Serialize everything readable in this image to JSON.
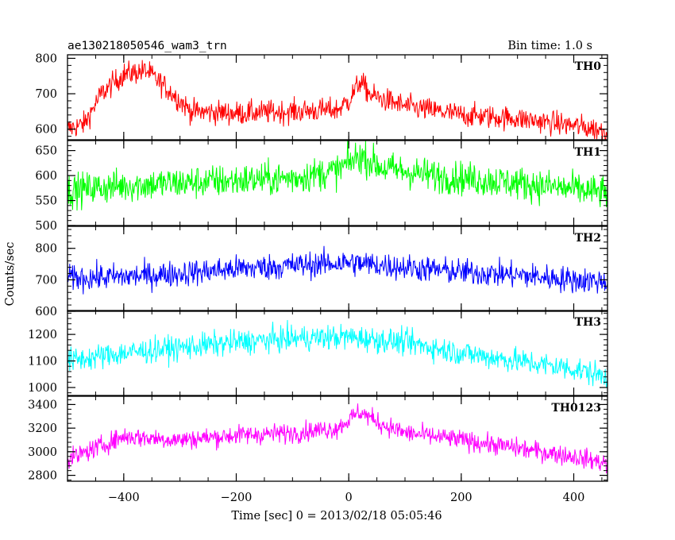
{
  "chart_data": {
    "type": "line",
    "title": "ae130218050546_wam3_trn",
    "bin_time": "Bin time: 1.0 s",
    "xlabel": "Time [sec] 0 = 2013/02/18 05:05:46",
    "ylabel": "Counts/sec",
    "xlim": [
      -500,
      460
    ],
    "x_ticks": [
      "−400",
      "−200",
      "0",
      "200",
      "400"
    ],
    "x_tick_values": [
      -400,
      -200,
      0,
      200,
      400
    ],
    "series": [
      {
        "name": "TH0",
        "color": "#ff0000",
        "ylim": [
          570,
          810
        ],
        "y_ticks": [
          600,
          700,
          800
        ],
        "y_tick_labels": [
          "600",
          "700",
          "800"
        ],
        "profile_x": [
          -500,
          -470,
          -440,
          -400,
          -360,
          -320,
          -280,
          -200,
          -100,
          -20,
          0,
          20,
          40,
          100,
          200,
          300,
          400,
          460
        ],
        "profile_y": [
          600,
          615,
          700,
          755,
          765,
          710,
          650,
          645,
          650,
          655,
          680,
          735,
          695,
          665,
          640,
          630,
          610,
          595
        ],
        "noise": 24
      },
      {
        "name": "TH1",
        "color": "#00ff00",
        "ylim": [
          500,
          670
        ],
        "y_ticks": [
          500,
          550,
          600,
          650
        ],
        "y_tick_labels": [
          "500",
          "550",
          "600",
          "650"
        ],
        "profile_x": [
          -500,
          -400,
          -300,
          -200,
          -100,
          -20,
          20,
          60,
          150,
          300,
          460
        ],
        "profile_y": [
          570,
          580,
          585,
          590,
          595,
          610,
          640,
          615,
          600,
          585,
          565
        ],
        "noise": 24
      },
      {
        "name": "TH2",
        "color": "#0000ff",
        "ylim": [
          600,
          870
        ],
        "y_ticks": [
          600,
          700,
          800
        ],
        "y_tick_labels": [
          "600",
          "700",
          "800"
        ],
        "profile_x": [
          -500,
          -400,
          -300,
          -200,
          -100,
          0,
          100,
          200,
          300,
          400,
          460
        ],
        "profile_y": [
          705,
          710,
          720,
          735,
          745,
          755,
          740,
          725,
          715,
          700,
          695
        ],
        "noise": 30
      },
      {
        "name": "TH3",
        "color": "#00ffff",
        "ylim": [
          970,
          1290
        ],
        "y_ticks": [
          1000,
          1100,
          1200
        ],
        "y_tick_labels": [
          "1000",
          "1100",
          "1200"
        ],
        "profile_x": [
          -500,
          -400,
          -300,
          -200,
          -100,
          0,
          100,
          200,
          300,
          400,
          460
        ],
        "profile_y": [
          1100,
          1130,
          1150,
          1170,
          1185,
          1190,
          1170,
          1130,
          1100,
          1070,
          1040
        ],
        "noise": 34
      },
      {
        "name": "TH0123",
        "color": "#ff00ff",
        "ylim": [
          2750,
          3470
        ],
        "y_ticks": [
          2800,
          3000,
          3200,
          3400
        ],
        "y_tick_labels": [
          "2800",
          "3000",
          "3200",
          "3400"
        ],
        "profile_x": [
          -500,
          -440,
          -400,
          -300,
          -200,
          -100,
          -20,
          20,
          60,
          100,
          200,
          300,
          400,
          460
        ],
        "profile_y": [
          2930,
          3050,
          3130,
          3100,
          3140,
          3160,
          3200,
          3340,
          3230,
          3160,
          3100,
          3030,
          2960,
          2900
        ],
        "noise": 60
      }
    ]
  }
}
